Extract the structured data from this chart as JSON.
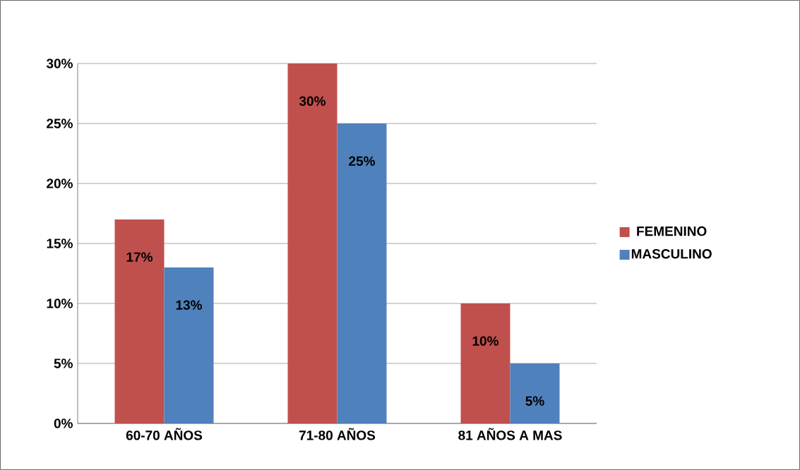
{
  "chart_data": {
    "type": "bar",
    "categories": [
      "60-70 AÑOS",
      "71-80 AÑOS",
      "81 AÑOS A MAS"
    ],
    "series": [
      {
        "name": "FEMENINO",
        "color": "#c0504d",
        "values": [
          17,
          30,
          10
        ],
        "value_labels": [
          "17%",
          "30%",
          "10%"
        ]
      },
      {
        "name": "MASCULINO",
        "color": "#4f81bd",
        "values": [
          13,
          25,
          5
        ],
        "value_labels": [
          "13%",
          "25%",
          "5%"
        ]
      }
    ],
    "ylim": [
      0,
      30
    ],
    "yticks": [
      {
        "value": 0,
        "label": "0%"
      },
      {
        "value": 5,
        "label": "5%"
      },
      {
        "value": 10,
        "label": "10%"
      },
      {
        "value": 15,
        "label": "15%"
      },
      {
        "value": 20,
        "label": "20%"
      },
      {
        "value": 25,
        "label": "25%"
      },
      {
        "value": 30,
        "label": "30%"
      }
    ],
    "grid": "y",
    "legend": "right"
  }
}
